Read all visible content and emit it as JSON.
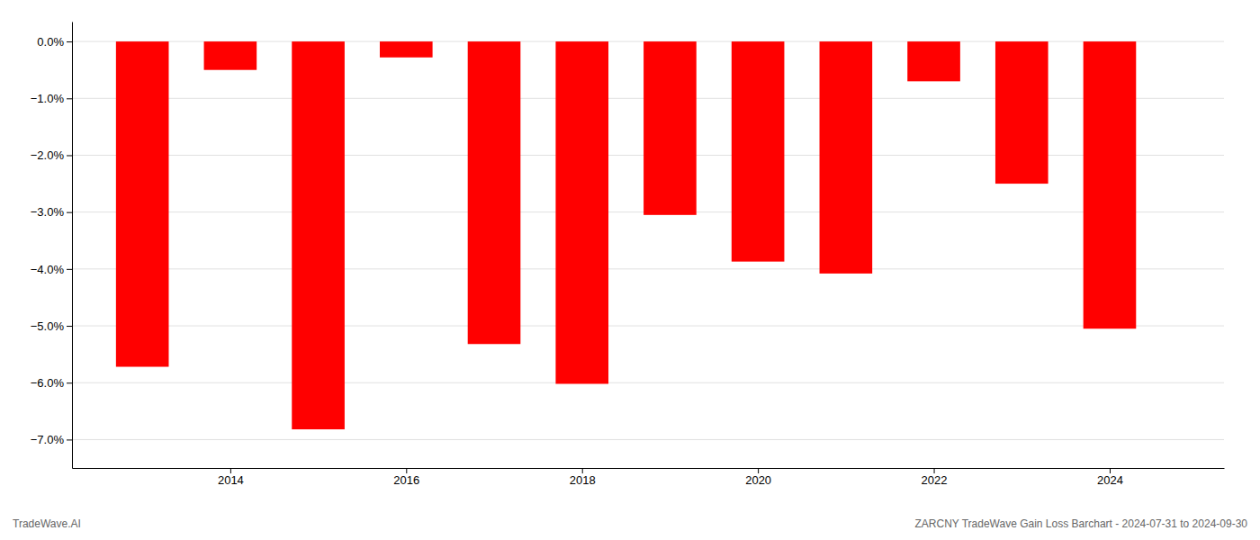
{
  "chart_data": {
    "type": "bar",
    "x": [
      2013,
      2014,
      2015,
      2016,
      2017,
      2018,
      2019,
      2020,
      2021,
      2022,
      2023,
      2024
    ],
    "values": [
      -5.72,
      -0.5,
      -6.82,
      -0.28,
      -5.32,
      -6.02,
      -3.05,
      -3.87,
      -4.08,
      -0.7,
      -2.5,
      -5.05
    ],
    "color": "#ff0000",
    "xlim": [
      2012.2,
      2025.3
    ],
    "xticks": [
      2014,
      2016,
      2018,
      2020,
      2022,
      2024
    ],
    "ylim": [
      -7.5,
      0.35
    ],
    "yticks": [
      {
        "value": 0.0,
        "label": "0.0%"
      },
      {
        "value": -1.0,
        "label": "−1.0%"
      },
      {
        "value": -2.0,
        "label": "−2.0%"
      },
      {
        "value": -3.0,
        "label": "−3.0%"
      },
      {
        "value": -4.0,
        "label": "−4.0%"
      },
      {
        "value": -5.0,
        "label": "−5.0%"
      },
      {
        "value": -6.0,
        "label": "−6.0%"
      },
      {
        "value": -7.0,
        "label": "−7.0%"
      }
    ],
    "grid": true,
    "annotations": [
      "TradeWave.AI",
      "ZARCNY TradeWave Gain Loss Barchart - 2024-07-31 to 2024-09-30"
    ]
  }
}
